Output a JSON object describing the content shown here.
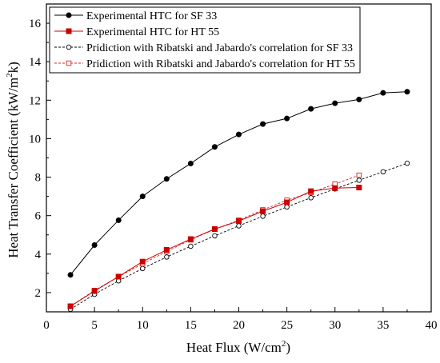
{
  "chart_data": {
    "type": "line",
    "title": "",
    "xlabel": "Heat Flux (W/cm",
    "xlabel_sup": "2",
    "xlabel_end": ")",
    "ylabel": "Heat Transfer Coefficient (kW/m",
    "ylabel_sup": "2",
    "ylabel_end": "k)",
    "xlim": [
      0,
      40
    ],
    "ylim": [
      1,
      17
    ],
    "xticks": [
      0,
      5,
      10,
      15,
      20,
      25,
      30,
      35,
      40
    ],
    "yticks": [
      2,
      4,
      6,
      8,
      10,
      12,
      14,
      16
    ],
    "grid": false,
    "legend_position": "top-left",
    "series": [
      {
        "name": "Experimental HTC for SF 33",
        "color": "#000000",
        "line": "solid",
        "marker": "circle-filled",
        "x": [
          2.5,
          5,
          7.5,
          10,
          12.5,
          15,
          17.5,
          20,
          22.5,
          25,
          27.5,
          30,
          32.5,
          35,
          37.5
        ],
        "y": [
          2.92,
          4.47,
          5.76,
          7.0,
          7.91,
          8.71,
          9.57,
          10.22,
          10.76,
          11.05,
          11.55,
          11.84,
          12.04,
          12.38,
          12.44
        ]
      },
      {
        "name": "Experimental HTC for HT 55",
        "color": "#cc0000",
        "line": "solid",
        "marker": "square-filled",
        "x": [
          2.5,
          5,
          7.5,
          10,
          12.5,
          15,
          17.5,
          20,
          22.5,
          25,
          27.5,
          30,
          32.5
        ],
        "y": [
          1.29,
          2.08,
          2.83,
          3.61,
          4.22,
          4.78,
          5.3,
          5.72,
          6.23,
          6.69,
          7.27,
          7.43,
          7.46
        ]
      },
      {
        "name": "Pridiction with  Ribatski and Jabardo's correlation for SF 33",
        "color": "#000000",
        "line": "dashed",
        "marker": "circle-open",
        "x": [
          2.5,
          5,
          7.5,
          10,
          12.5,
          15,
          17.5,
          20,
          22.5,
          25,
          27.5,
          30,
          32.5,
          35,
          37.5
        ],
        "y": [
          1.13,
          1.91,
          2.61,
          3.25,
          3.85,
          4.41,
          4.95,
          5.47,
          5.97,
          6.45,
          6.93,
          7.39,
          7.84,
          8.28,
          8.72
        ]
      },
      {
        "name": "Pridiction with  Ribatski and Jabardo's correlation for HT 55",
        "color": "#dd2222",
        "line": "dashed",
        "marker": "square-open",
        "x": [
          2.5,
          5,
          7.5,
          10,
          12.5,
          15,
          17.5,
          20,
          22.5,
          25,
          27.5,
          30,
          32.5
        ],
        "y": [
          1.29,
          2.11,
          2.83,
          3.5,
          4.14,
          4.74,
          5.3,
          5.76,
          6.3,
          6.8,
          7.2,
          7.64,
          8.1
        ]
      }
    ]
  }
}
